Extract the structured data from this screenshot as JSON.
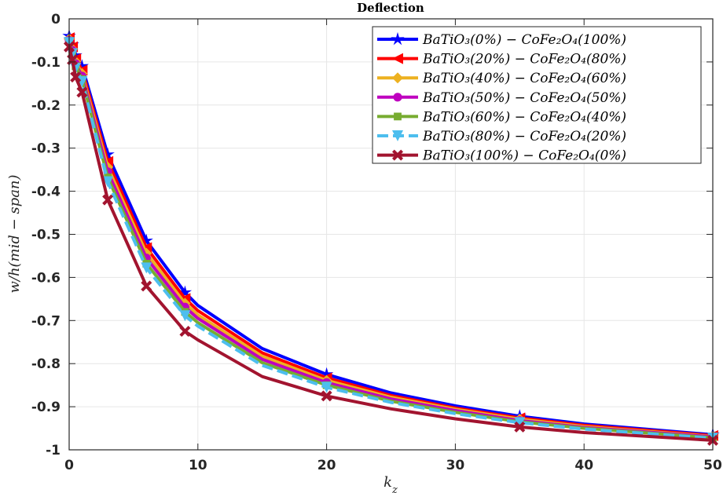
{
  "chart_data": {
    "type": "line",
    "title": "Deflection",
    "xlabel": "k_z",
    "ylabel": "w/h(mid − span)",
    "xlim": [
      0,
      50
    ],
    "ylim": [
      -1,
      0
    ],
    "xticks": [
      "0",
      "10",
      "20",
      "30",
      "40",
      "50"
    ],
    "yticks": [
      "0",
      "-0.1",
      "-0.2",
      "-0.3",
      "-0.4",
      "-0.5",
      "-0.6",
      "-0.7",
      "-0.8",
      "-0.9",
      "-1"
    ],
    "grid": true,
    "legend_position": "top-right",
    "x": [
      0,
      0.25,
      0.5,
      1,
      3,
      6,
      9,
      10,
      15,
      20,
      25,
      30,
      35,
      40,
      50
    ],
    "marker_indices": [
      0,
      1,
      2,
      3,
      4,
      5,
      6,
      9,
      12,
      14
    ],
    "series": [
      {
        "name": "BaTiO₃(0%) − CoFe₂O₄(100%)",
        "color": "#0000ff",
        "marker": "star",
        "dash": false,
        "values": [
          -0.04,
          -0.06,
          -0.085,
          -0.11,
          -0.315,
          -0.515,
          -0.635,
          -0.665,
          -0.765,
          -0.825,
          -0.868,
          -0.898,
          -0.922,
          -0.94,
          -0.965
        ]
      },
      {
        "name": "BaTiO₃(20%) − CoFe₂O₄(80%)",
        "color": "#ff0000",
        "marker": "triangle-left",
        "dash": false,
        "values": [
          -0.044,
          -0.065,
          -0.093,
          -0.119,
          -0.331,
          -0.531,
          -0.649,
          -0.677,
          -0.775,
          -0.833,
          -0.874,
          -0.903,
          -0.926,
          -0.943,
          -0.967
        ]
      },
      {
        "name": "BaTiO₃(40%) − CoFe₂O₄(60%)",
        "color": "#edb120",
        "marker": "diamond",
        "dash": false,
        "values": [
          -0.047,
          -0.07,
          -0.099,
          -0.127,
          -0.344,
          -0.544,
          -0.66,
          -0.687,
          -0.783,
          -0.839,
          -0.878,
          -0.906,
          -0.929,
          -0.946,
          -0.969
        ]
      },
      {
        "name": "BaTiO₃(50%) − CoFe₂O₄(50%)",
        "color": "#bf00bf",
        "marker": "circle",
        "dash": false,
        "values": [
          -0.05,
          -0.073,
          -0.104,
          -0.133,
          -0.355,
          -0.555,
          -0.669,
          -0.695,
          -0.79,
          -0.844,
          -0.882,
          -0.909,
          -0.932,
          -0.948,
          -0.97
        ]
      },
      {
        "name": "BaTiO₃(60%) − CoFe₂O₄(40%)",
        "color": "#77ac30",
        "marker": "square",
        "dash": false,
        "values": [
          -0.053,
          -0.078,
          -0.11,
          -0.14,
          -0.368,
          -0.568,
          -0.68,
          -0.705,
          -0.798,
          -0.85,
          -0.887,
          -0.913,
          -0.935,
          -0.95,
          -0.972
        ]
      },
      {
        "name": "BaTiO₃(80%) − CoFe₂O₄(20%)",
        "color": "#4dbeee",
        "marker": "triangle-down",
        "dash": true,
        "values": [
          -0.055,
          -0.081,
          -0.115,
          -0.146,
          -0.378,
          -0.578,
          -0.689,
          -0.713,
          -0.804,
          -0.855,
          -0.89,
          -0.916,
          -0.937,
          -0.952,
          -0.973
        ]
      },
      {
        "name": "BaTiO₃(100%) − CoFe₂O₄(0%)",
        "color": "#a2142f",
        "marker": "x",
        "dash": false,
        "values": [
          -0.065,
          -0.095,
          -0.135,
          -0.17,
          -0.42,
          -0.62,
          -0.725,
          -0.745,
          -0.83,
          -0.875,
          -0.905,
          -0.928,
          -0.947,
          -0.96,
          -0.978
        ]
      }
    ]
  }
}
